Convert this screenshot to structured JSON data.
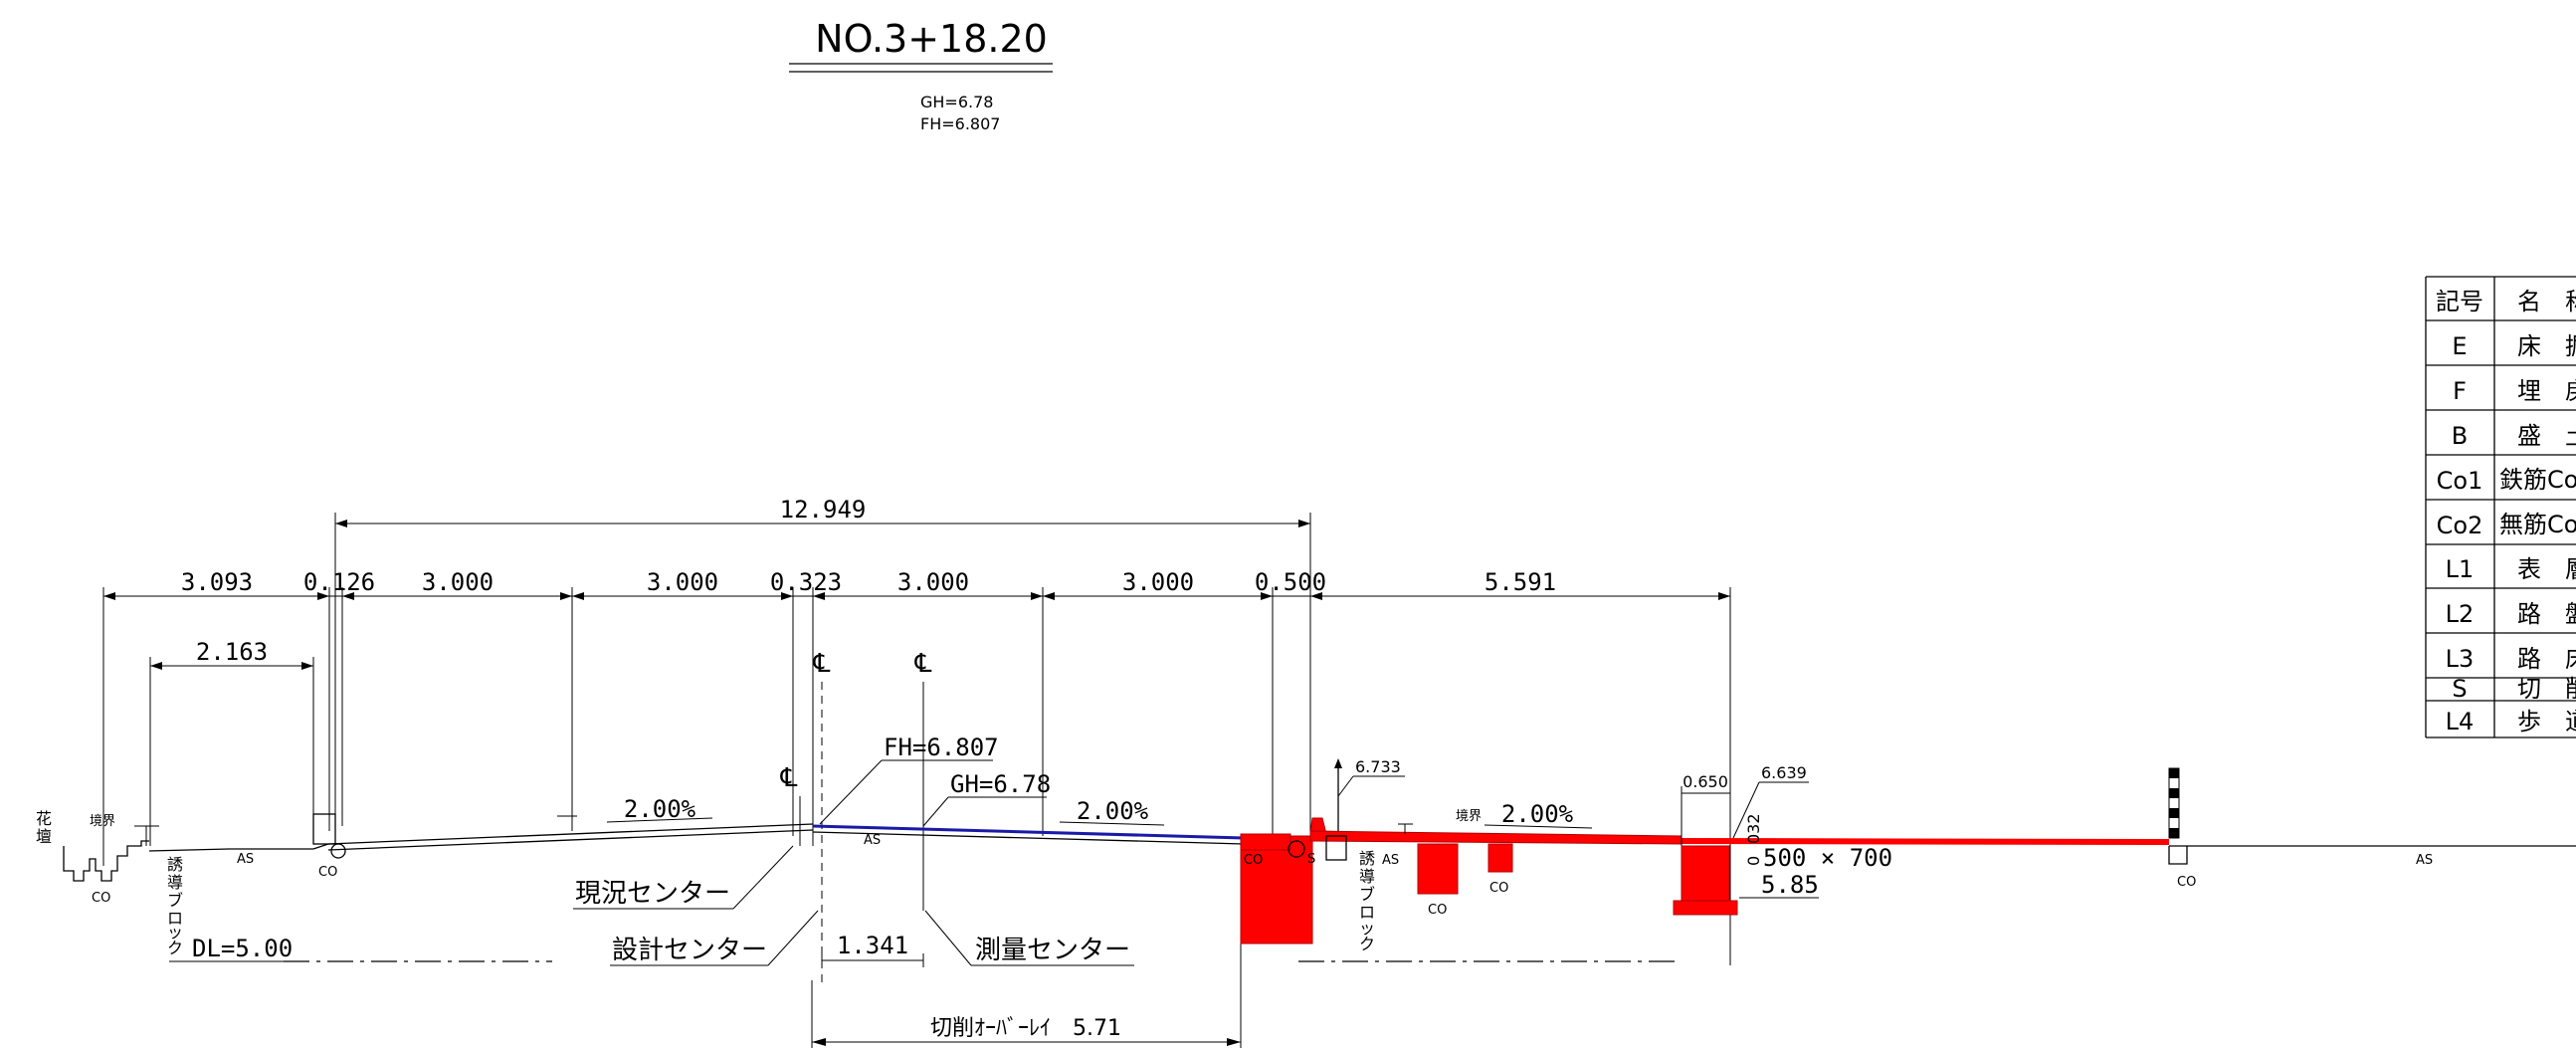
{
  "header": {
    "station": "NO.3+18.20",
    "gh": "GH=6.78",
    "fh": "FH=6.807"
  },
  "dimensions": {
    "overall": "12.949",
    "segments": [
      "3.093",
      "0.126",
      "3.000",
      "3.000",
      "0.323",
      "3.000",
      "3.000",
      "0.500",
      "5.591"
    ],
    "sub": "2.163",
    "center_offset": "1.341",
    "overlay": "切削ｵｰﾊﾞｰﾚｲ　5.71",
    "dl": "DL=5.00"
  },
  "labels": {
    "fh_center": "FH=6.807",
    "gh_center": "GH=6.78",
    "slope_left": "2.00%",
    "slope_mid": "2.00%",
    "slope_right": "2.00%",
    "existing_center": "現況センター",
    "design_center": "設計センター",
    "survey_center": "測量センター",
    "cl_symbol": "℄",
    "elev_1": "6.733",
    "elev_2": "6.639",
    "w_0650": "0.650",
    "w_032": "032",
    "box_size": "500 × 700",
    "box_zero": "0",
    "box_elev": "5.85",
    "flower_bed_1": "花",
    "flower_bed_2": "壇",
    "boundary": "境界",
    "guide_block_1": "誘",
    "guide_block_2": "導",
    "guide_block_3": "ブ",
    "guide_block_4": "ロ",
    "guide_block_5": "ッ",
    "guide_block_6": "ク",
    "as": "AS",
    "co": "CO",
    "s": "S"
  },
  "legend": {
    "header": [
      "記号",
      "名　称"
    ],
    "rows": [
      [
        "E",
        "床　掘"
      ],
      [
        "F",
        "埋　戻"
      ],
      [
        "B",
        "盛　土"
      ],
      [
        "Co1",
        "鉄筋Co取"
      ],
      [
        "Co2",
        "無筋Co取"
      ],
      [
        "L1",
        "表　層"
      ],
      [
        "L2",
        "路　盤"
      ],
      [
        "L3",
        "路　床"
      ],
      [
        "S",
        "切　削"
      ],
      [
        "L4",
        "歩　道"
      ]
    ]
  }
}
